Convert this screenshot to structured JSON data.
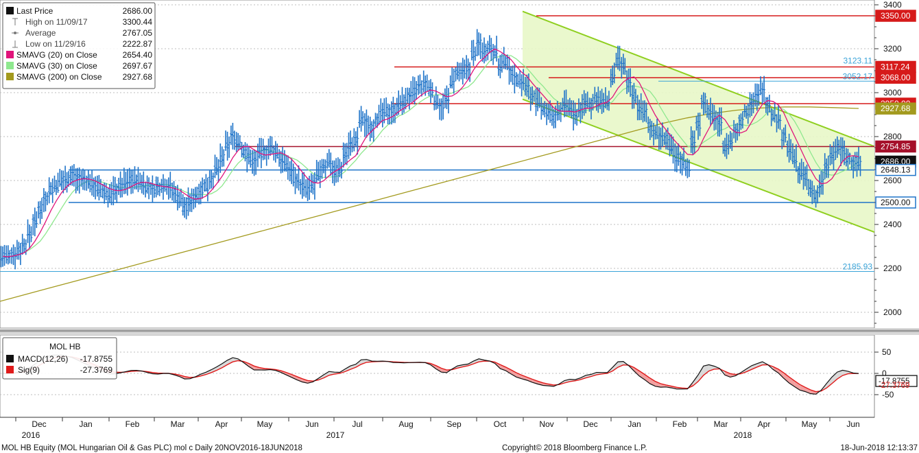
{
  "chart_data": [
    {
      "type": "line",
      "title": "",
      "ylim": [
        1900,
        3400
      ],
      "y_ticks": [
        "2000",
        "2200",
        "2400",
        "2600",
        "2800",
        "3000",
        "3200",
        "3400"
      ],
      "x_month_labels": [
        "Dec",
        "Jan",
        "Feb",
        "Mar",
        "Apr",
        "May",
        "Jun",
        "Jul",
        "Aug",
        "Sep",
        "Oct",
        "Nov",
        "Dec",
        "Jan",
        "Feb",
        "Mar",
        "Apr",
        "May",
        "Jun"
      ],
      "x_year_labels": [
        "2016",
        "2017",
        "2018"
      ],
      "legend": [
        {
          "name": "Last Price",
          "value": "2686.00",
          "color": "#111111",
          "kind": "box"
        },
        {
          "name": "High on 11/09/17",
          "value": "3300.44",
          "color": "#777777",
          "kind": "icon-high"
        },
        {
          "name": "Average",
          "value": "2767.05",
          "color": "#777777",
          "kind": "icon-avg"
        },
        {
          "name": "Low on 11/29/16",
          "value": "2222.87",
          "color": "#777777",
          "kind": "icon-low"
        },
        {
          "name": "SMAVG (20) on Close",
          "value": "2654.40",
          "color": "#e0147a",
          "kind": "box"
        },
        {
          "name": "SMAVG (30) on Close",
          "value": "2697.67",
          "color": "#8ee88e",
          "kind": "box"
        },
        {
          "name": "SMAVG (200) on Close",
          "value": "2927.68",
          "color": "#a39a1e",
          "kind": "box"
        }
      ],
      "series": [
        {
          "name": "Last Price",
          "color": "#1e73c8",
          "values": [
            2255,
            2250,
            2265,
            2280,
            2305,
            2355,
            2410,
            2470,
            2520,
            2560,
            2575,
            2600,
            2610,
            2620,
            2610,
            2600,
            2595,
            2580,
            2560,
            2545,
            2535,
            2555,
            2575,
            2590,
            2605,
            2600,
            2590,
            2570,
            2560,
            2565,
            2580,
            2575,
            2545,
            2520,
            2480,
            2500,
            2530,
            2560,
            2575,
            2610,
            2650,
            2700,
            2760,
            2800,
            2775,
            2735,
            2705,
            2685,
            2725,
            2730,
            2745,
            2730,
            2700,
            2670,
            2640,
            2605,
            2575,
            2555,
            2580,
            2625,
            2660,
            2690,
            2645,
            2650,
            2725,
            2765,
            2780,
            2875,
            2860,
            2845,
            2880,
            2905,
            2915,
            2920,
            2945,
            2960,
            2985,
            3005,
            3025,
            3035,
            3010,
            2960,
            2940,
            2965,
            3050,
            3085,
            3090,
            3110,
            3180,
            3220,
            3195,
            3210,
            3190,
            3120,
            3140,
            3095,
            3060,
            3050,
            3025,
            2985,
            2955,
            2925,
            2910,
            2880,
            2915,
            2945,
            2925,
            2895,
            2925,
            2955,
            2945,
            2975,
            2955,
            2955,
            3070,
            3145,
            3115,
            3045,
            2985,
            2935,
            2905,
            2845,
            2815,
            2800,
            2790,
            2745,
            2705,
            2690,
            2665,
            2780,
            2855,
            2965,
            2915,
            2885,
            2865,
            2755,
            2775,
            2820,
            2870,
            2915,
            2955,
            2980,
            3015,
            2955,
            2895,
            2875,
            2800,
            2745,
            2700,
            2640,
            2615,
            2555,
            2530,
            2585,
            2660,
            2710,
            2745,
            2735,
            2700,
            2675,
            2686
          ]
        },
        {
          "name": "SMAVG (20) on Close",
          "color": "#e0147a"
        },
        {
          "name": "SMAVG (30) on Close",
          "color": "#8ee88e"
        },
        {
          "name": "SMAVG (200) on Close",
          "color": "#a39a1e",
          "values": [
            2050,
            2080,
            2110,
            2140,
            2170,
            2200,
            2230,
            2260,
            2290,
            2320,
            2350,
            2380,
            2410,
            2440,
            2470,
            2500,
            2530,
            2560,
            2590,
            2620,
            2650,
            2680,
            2710,
            2740,
            2770,
            2800,
            2830,
            2860,
            2885,
            2905,
            2920,
            2930,
            2935,
            2935,
            2932,
            2928
          ]
        }
      ],
      "levels": [
        {
          "value": 3350.0,
          "label": "3350.00",
          "color": "#d61a1a",
          "label_style": "box"
        },
        {
          "value": 3123.11,
          "label": "3123.11",
          "color": "#39a3d8",
          "label_style": "text"
        },
        {
          "value": 3117.24,
          "label": "3117.24",
          "color": "#d61a1a",
          "label_style": "box"
        },
        {
          "value": 3068.0,
          "label": "3068.00",
          "color": "#d61a1a",
          "label_style": "box"
        },
        {
          "value": 3052.17,
          "label": "3052.17",
          "color": "#39a3d8",
          "label_style": "text"
        },
        {
          "value": 2950.0,
          "label": "2950.00",
          "color": "#d61a1a",
          "label_style": "box"
        },
        {
          "value": 2927.68,
          "label": "2927.68",
          "color": "#a39a1e",
          "label_style": "box"
        },
        {
          "value": 2754.85,
          "label": "2754.85",
          "color": "#a5102a",
          "label_style": "box"
        },
        {
          "value": 2686.0,
          "label": "2686.00",
          "color": "#111111",
          "label_style": "box"
        },
        {
          "value": 2648.13,
          "label": "2648.13",
          "color": "#1e73c8",
          "label_style": "box-light"
        },
        {
          "value": 2500.0,
          "label": "2500.00",
          "color": "#1e73c8",
          "label_style": "box-light"
        },
        {
          "value": 2185.93,
          "label": "2185.93",
          "color": "#39a3d8",
          "label_style": "text"
        }
      ],
      "channel": {
        "upper_start": 3370,
        "upper_end": 2755,
        "lower_start": 2970,
        "lower_end": 2365,
        "color": "#8fcf1f"
      }
    },
    {
      "type": "line",
      "title": "MOL HB",
      "ylim": [
        -100,
        80
      ],
      "y_ticks": [
        "50",
        "0",
        "-50"
      ],
      "legend": [
        {
          "name": "MACD(12,26)",
          "value": "-17.8755",
          "color": "#111111"
        },
        {
          "name": "Sig(9)",
          "value": "-27.3769",
          "color": "#e01a1a"
        }
      ],
      "series": [
        {
          "name": "MACD(12,26)",
          "color": "#111111"
        },
        {
          "name": "Sig(9)",
          "color": "#e01a1a"
        }
      ],
      "levels": [
        {
          "value": -17.8755,
          "label": "-17.8755",
          "color": "#111111"
        },
        {
          "value": -27.3769,
          "label": "-27.3769",
          "color": "#e01a1a"
        }
      ]
    }
  ],
  "footer": {
    "left": "MOL HB Equity (MOL Hungarian Oil & Gas PLC) mol c  Daily 20NOV2016-18JUN2018",
    "center": "Copyright© 2018 Bloomberg Finance L.P.",
    "right": "18-Jun-2018 12:13:37"
  }
}
